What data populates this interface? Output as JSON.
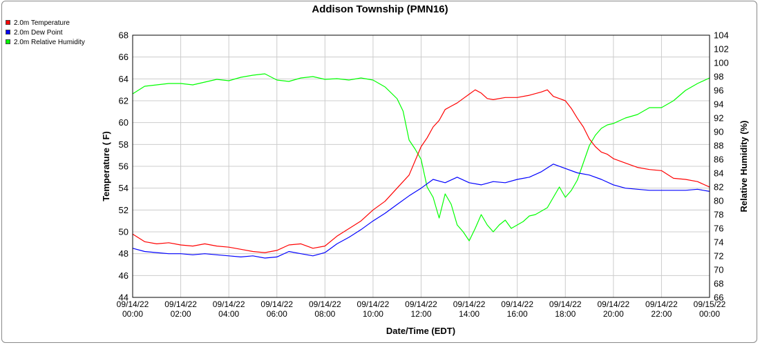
{
  "chart_data": {
    "type": "line",
    "title": "Addison Township (PMN16)",
    "xlabel": "Date/Time (EDT)",
    "ylabel": "Temperature ( F)",
    "y2label": "Relative Humidity (%)",
    "x_ticks": [
      [
        "09/14/22",
        "00:00"
      ],
      [
        "09/14/22",
        "02:00"
      ],
      [
        "09/14/22",
        "04:00"
      ],
      [
        "09/14/22",
        "06:00"
      ],
      [
        "09/14/22",
        "08:00"
      ],
      [
        "09/14/22",
        "10:00"
      ],
      [
        "09/14/22",
        "12:00"
      ],
      [
        "09/14/22",
        "14:00"
      ],
      [
        "09/14/22",
        "16:00"
      ],
      [
        "09/14/22",
        "18:00"
      ],
      [
        "09/14/22",
        "20:00"
      ],
      [
        "09/14/22",
        "22:00"
      ],
      [
        "09/15/22",
        "00:00"
      ]
    ],
    "x_hours": [
      0,
      2,
      4,
      6,
      8,
      10,
      12,
      14,
      16,
      18,
      20,
      22,
      24
    ],
    "xlim": [
      0,
      24
    ],
    "ylim": [
      44,
      68
    ],
    "y2lim": [
      66,
      104
    ],
    "y_ticks": [
      44,
      46,
      48,
      50,
      52,
      54,
      56,
      58,
      60,
      62,
      64,
      66,
      68
    ],
    "y2_ticks": [
      66,
      68,
      70,
      72,
      74,
      76,
      78,
      80,
      82,
      84,
      86,
      88,
      90,
      92,
      94,
      96,
      98,
      100,
      102,
      104
    ],
    "grid": true,
    "legend_position": "top-left",
    "series": [
      {
        "name": "2.0m Temperature",
        "color": "#ff0000",
        "axis": "left",
        "x": [
          0,
          0.5,
          1,
          1.5,
          2,
          2.5,
          3,
          3.5,
          4,
          4.5,
          5,
          5.5,
          6,
          6.5,
          7,
          7.5,
          8,
          8.5,
          9,
          9.5,
          10,
          10.5,
          11,
          11.5,
          12,
          12.25,
          12.5,
          12.75,
          13,
          13.25,
          13.5,
          13.75,
          14,
          14.25,
          14.5,
          14.75,
          15,
          15.5,
          16,
          16.5,
          17,
          17.25,
          17.5,
          17.75,
          18,
          18.25,
          18.5,
          18.75,
          19,
          19.25,
          19.5,
          19.75,
          20,
          20.5,
          21,
          21.5,
          22,
          22.5,
          23,
          23.5,
          24
        ],
        "values": [
          49.8,
          49.1,
          48.9,
          49.0,
          48.8,
          48.7,
          48.9,
          48.7,
          48.6,
          48.4,
          48.2,
          48.1,
          48.3,
          48.8,
          48.9,
          48.5,
          48.7,
          49.6,
          50.3,
          51.0,
          52.0,
          52.8,
          54.0,
          55.2,
          57.8,
          58.6,
          59.6,
          60.2,
          61.2,
          61.5,
          61.8,
          62.2,
          62.6,
          63.0,
          62.7,
          62.2,
          62.1,
          62.3,
          62.3,
          62.5,
          62.8,
          63.0,
          62.4,
          62.2,
          62.0,
          61.3,
          60.4,
          59.6,
          58.5,
          57.8,
          57.3,
          57.1,
          56.7,
          56.3,
          55.9,
          55.7,
          55.6,
          54.9,
          54.8,
          54.6,
          54.1
        ]
      },
      {
        "name": "2.0m Dew Point",
        "color": "#0000ff",
        "axis": "left",
        "x": [
          0,
          0.5,
          1,
          1.5,
          2,
          2.5,
          3,
          3.5,
          4,
          4.5,
          5,
          5.5,
          6,
          6.5,
          7,
          7.5,
          8,
          8.5,
          9,
          9.5,
          10,
          10.5,
          11,
          11.5,
          12,
          12.5,
          13,
          13.5,
          14,
          14.5,
          15,
          15.5,
          16,
          16.5,
          17,
          17.5,
          18,
          18.5,
          19,
          19.5,
          20,
          20.5,
          21,
          21.5,
          22,
          22.5,
          23,
          23.5,
          24
        ],
        "values": [
          48.5,
          48.2,
          48.1,
          48.0,
          48.0,
          47.9,
          48.0,
          47.9,
          47.8,
          47.7,
          47.8,
          47.6,
          47.7,
          48.2,
          48.0,
          47.8,
          48.1,
          48.9,
          49.5,
          50.2,
          51.0,
          51.7,
          52.5,
          53.3,
          54.0,
          54.8,
          54.5,
          55.0,
          54.5,
          54.3,
          54.6,
          54.5,
          54.8,
          55.0,
          55.5,
          56.2,
          55.8,
          55.4,
          55.2,
          54.8,
          54.3,
          54.0,
          53.9,
          53.8,
          53.8,
          53.8,
          53.8,
          53.9,
          53.7
        ]
      },
      {
        "name": "2.0m Relative Humidity",
        "color": "#00ff00",
        "axis": "right",
        "x": [
          0,
          0.5,
          1,
          1.5,
          2,
          2.5,
          3,
          3.5,
          4,
          4.5,
          5,
          5.5,
          6,
          6.5,
          7,
          7.5,
          8,
          8.5,
          9,
          9.5,
          10,
          10.5,
          11,
          11.25,
          11.5,
          11.75,
          12,
          12.25,
          12.5,
          12.75,
          13,
          13.25,
          13.5,
          13.75,
          14,
          14.25,
          14.5,
          14.75,
          15,
          15.25,
          15.5,
          15.75,
          16,
          16.25,
          16.5,
          16.75,
          17,
          17.25,
          17.5,
          17.75,
          18,
          18.25,
          18.5,
          18.75,
          19,
          19.25,
          19.5,
          19.75,
          20,
          20.5,
          21,
          21.5,
          22,
          22.5,
          23,
          23.5,
          24
        ],
        "values": [
          95.5,
          96.6,
          96.8,
          97.0,
          97.0,
          96.8,
          97.2,
          97.6,
          97.4,
          97.9,
          98.2,
          98.4,
          97.5,
          97.3,
          97.8,
          98.0,
          97.6,
          97.7,
          97.5,
          97.8,
          97.5,
          96.5,
          94.8,
          93.0,
          88.8,
          87.5,
          86.0,
          82.0,
          80.5,
          77.5,
          81.0,
          79.5,
          76.5,
          75.5,
          74.2,
          76.0,
          78.0,
          76.5,
          75.5,
          76.5,
          77.2,
          76.0,
          76.5,
          77.0,
          77.8,
          78.0,
          78.5,
          79.0,
          80.5,
          82.0,
          80.5,
          81.5,
          83.0,
          85.5,
          88.0,
          89.5,
          90.5,
          91.0,
          91.2,
          92.0,
          92.5,
          93.5,
          93.5,
          94.5,
          96.0,
          97.0,
          97.8
        ]
      }
    ]
  }
}
